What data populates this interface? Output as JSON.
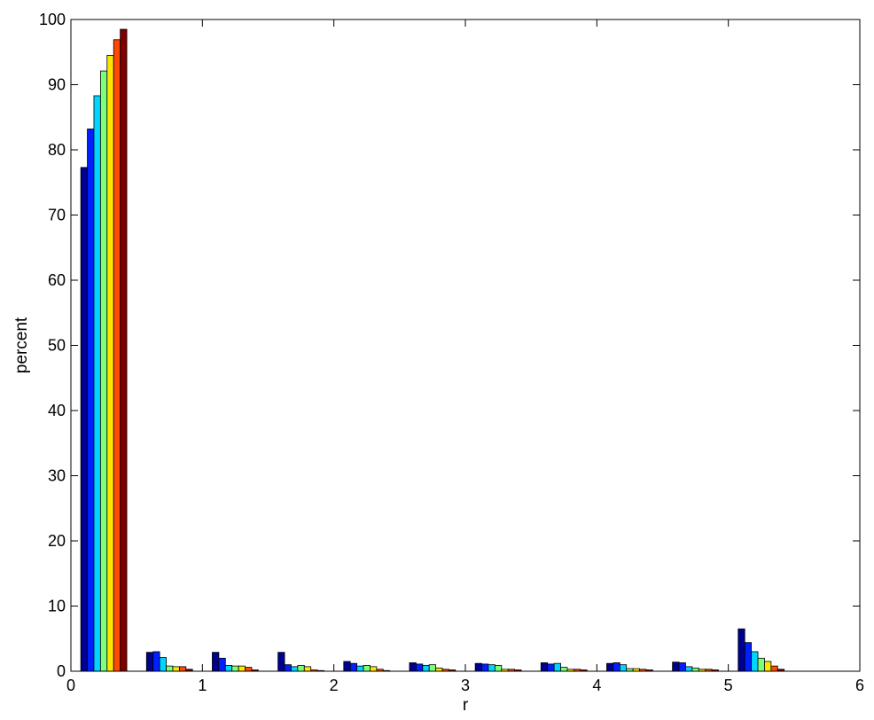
{
  "chart_data": {
    "type": "bar",
    "title": "",
    "xlabel": "r",
    "ylabel": "percent",
    "xlim": [
      0,
      6
    ],
    "ylim": [
      0,
      100
    ],
    "xticks": [
      0,
      1,
      2,
      3,
      4,
      5,
      6
    ],
    "yticks": [
      0,
      10,
      20,
      30,
      40,
      50,
      60,
      70,
      80,
      90,
      100
    ],
    "grid": false,
    "legend": "none",
    "group_centers": [
      0.25,
      0.75,
      1.25,
      1.75,
      2.25,
      2.75,
      3.25,
      3.75,
      4.25,
      4.75,
      5.25
    ],
    "bar_width": 0.05,
    "series": [
      {
        "color": "#00008f",
        "values": [
          77.3,
          2.9,
          2.9,
          2.9,
          1.5,
          1.3,
          1.2,
          1.3,
          1.2,
          1.4,
          6.5
        ]
      },
      {
        "color": "#0020ff",
        "values": [
          83.2,
          3.0,
          2.0,
          1.0,
          1.2,
          1.1,
          1.1,
          1.1,
          1.3,
          1.3,
          4.4
        ]
      },
      {
        "color": "#00d4ff",
        "values": [
          88.3,
          2.1,
          0.9,
          0.7,
          0.8,
          0.9,
          1.0,
          1.2,
          1.0,
          0.7,
          3.0
        ]
      },
      {
        "color": "#7dff7a",
        "values": [
          92.1,
          0.8,
          0.8,
          0.9,
          0.9,
          1.0,
          0.9,
          0.6,
          0.4,
          0.5,
          2.0
        ]
      },
      {
        "color": "#ffe600",
        "values": [
          94.5,
          0.7,
          0.8,
          0.7,
          0.7,
          0.5,
          0.3,
          0.3,
          0.4,
          0.3,
          1.5
        ]
      },
      {
        "color": "#ff4a00",
        "values": [
          96.9,
          0.7,
          0.6,
          0.2,
          0.3,
          0.3,
          0.3,
          0.3,
          0.3,
          0.3,
          0.8
        ]
      },
      {
        "color": "#800000",
        "values": [
          98.5,
          0.3,
          0.2,
          0.1,
          0.1,
          0.2,
          0.2,
          0.2,
          0.2,
          0.2,
          0.3
        ]
      }
    ]
  }
}
